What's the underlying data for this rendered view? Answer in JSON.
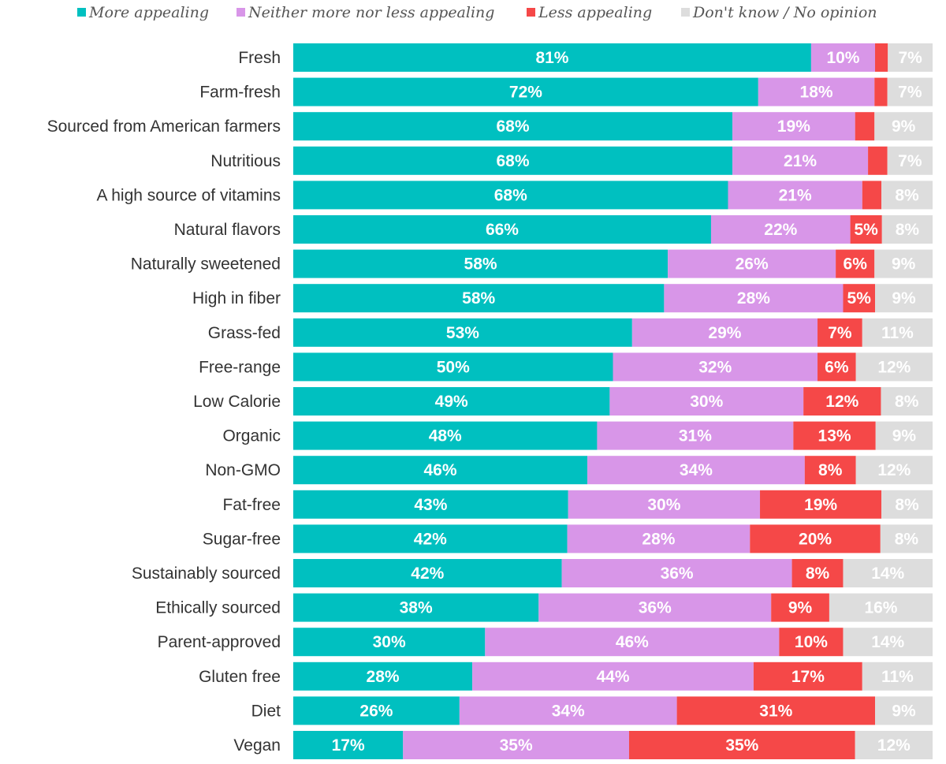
{
  "chart_data": {
    "type": "bar",
    "orientation": "horizontal",
    "stacked": true,
    "legend_position": "top",
    "grid": false,
    "xlim": [
      0,
      100
    ],
    "categories": [
      "Fresh",
      "Farm-fresh",
      "Sourced from American farmers",
      "Nutritious",
      "A high source of vitamins",
      "Natural flavors",
      "Naturally sweetened",
      "High in fiber",
      "Grass-fed",
      "Free-range",
      "Low Calorie",
      "Organic",
      "Non-GMO",
      "Fat-free",
      "Sugar-free",
      "Sustainably sourced",
      "Ethically sourced",
      "Parent-approved",
      "Gluten free",
      "Diet",
      "Vegan"
    ],
    "series": [
      {
        "name": "More appealing",
        "color": "#00c0c0",
        "values": [
          81,
          72,
          68,
          68,
          68,
          66,
          58,
          58,
          53,
          50,
          49,
          48,
          46,
          43,
          42,
          42,
          38,
          30,
          28,
          26,
          17
        ],
        "labels": [
          "81%",
          "72%",
          "68%",
          "68%",
          "68%",
          "66%",
          "58%",
          "58%",
          "53%",
          "50%",
          "49%",
          "48%",
          "46%",
          "43%",
          "42%",
          "42%",
          "38%",
          "30%",
          "28%",
          "26%",
          "17%"
        ]
      },
      {
        "name": "Neither more nor less appealing",
        "color": "#d896e8",
        "values": [
          10,
          18,
          19,
          21,
          21,
          22,
          26,
          28,
          29,
          32,
          30,
          31,
          34,
          30,
          28,
          36,
          36,
          46,
          44,
          34,
          35
        ],
        "labels": [
          "10%",
          "18%",
          "19%",
          "21%",
          "21%",
          "22%",
          "26%",
          "28%",
          "29%",
          "32%",
          "30%",
          "31%",
          "34%",
          "30%",
          "28%",
          "36%",
          "36%",
          "46%",
          "44%",
          "34%",
          "35%"
        ]
      },
      {
        "name": "Less appealing",
        "color": "#f54848",
        "values": [
          2,
          2,
          3,
          3,
          3,
          5,
          6,
          5,
          7,
          6,
          12,
          13,
          8,
          19,
          20,
          8,
          9,
          10,
          17,
          31,
          35
        ],
        "labels": [
          "",
          "",
          "",
          "",
          "",
          "5%",
          "6%",
          "5%",
          "7%",
          "6%",
          "12%",
          "13%",
          "8%",
          "19%",
          "20%",
          "8%",
          "9%",
          "10%",
          "17%",
          "31%",
          "35%"
        ]
      },
      {
        "name": "Don't know / No opinion",
        "color": "#dddddd",
        "values": [
          7,
          7,
          9,
          7,
          8,
          8,
          9,
          9,
          11,
          12,
          8,
          9,
          12,
          8,
          8,
          14,
          16,
          14,
          11,
          9,
          12
        ],
        "labels": [
          "7%",
          "7%",
          "9%",
          "7%",
          "8%",
          "8%",
          "9%",
          "9%",
          "11%",
          "12%",
          "8%",
          "9%",
          "12%",
          "8%",
          "8%",
          "14%",
          "16%",
          "14%",
          "11%",
          "9%",
          "12%"
        ]
      }
    ]
  }
}
